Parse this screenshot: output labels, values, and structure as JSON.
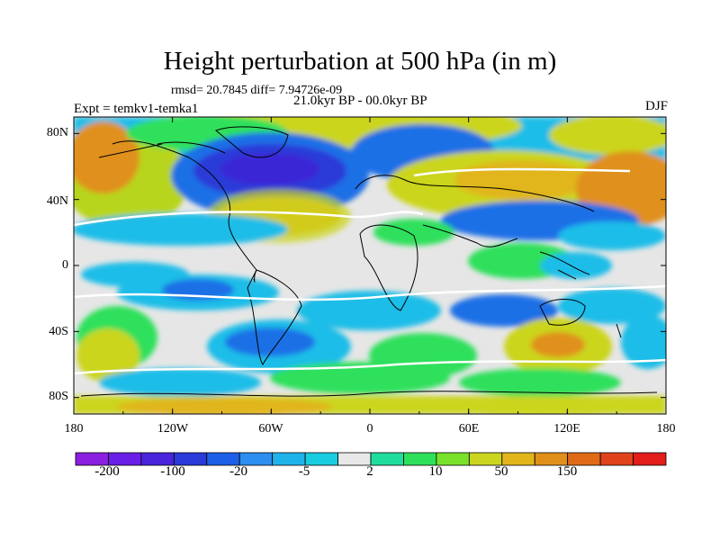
{
  "title": "Height perturbation at 500 hPa (in m)",
  "stats": "rmsd= 20.7845 diff= 7.94726e-09",
  "period": "21.0kyr BP - 00.0kyr BP",
  "experiment": "Expt = temkv1-temka1",
  "season": "DJF",
  "lat_labels": [
    "80N",
    "40N",
    "0",
    "40S",
    "80S"
  ],
  "lon_labels": [
    "180",
    "120W",
    "60W",
    "0",
    "60E",
    "120E",
    "180"
  ],
  "colorbar": {
    "labels": [
      "-200",
      "-100",
      "-20",
      "-5",
      "2",
      "10",
      "50",
      "150"
    ],
    "colors": [
      "#8a1fe0",
      "#6a1fe6",
      "#4a24dc",
      "#2a3ad8",
      "#1d5fe6",
      "#2c8ef0",
      "#1fb3e9",
      "#19ccdf",
      "#e8e8e8",
      "#20dd9e",
      "#2fe05b",
      "#79e12b",
      "#cbd51f",
      "#e1b51b",
      "#e0901a",
      "#e06a18",
      "#e0421b",
      "#e21d1a"
    ]
  },
  "colors": {
    "neutral": "#e6e6e6",
    "weak_negative": "#1fbde8",
    "moderate_negative": "#1d6fe6",
    "strong_negative": "#2a3ad8",
    "weak_positive": "#2fe05b",
    "moderate_positive": "#b7d51f",
    "strong_positive": "#e0901a"
  }
}
